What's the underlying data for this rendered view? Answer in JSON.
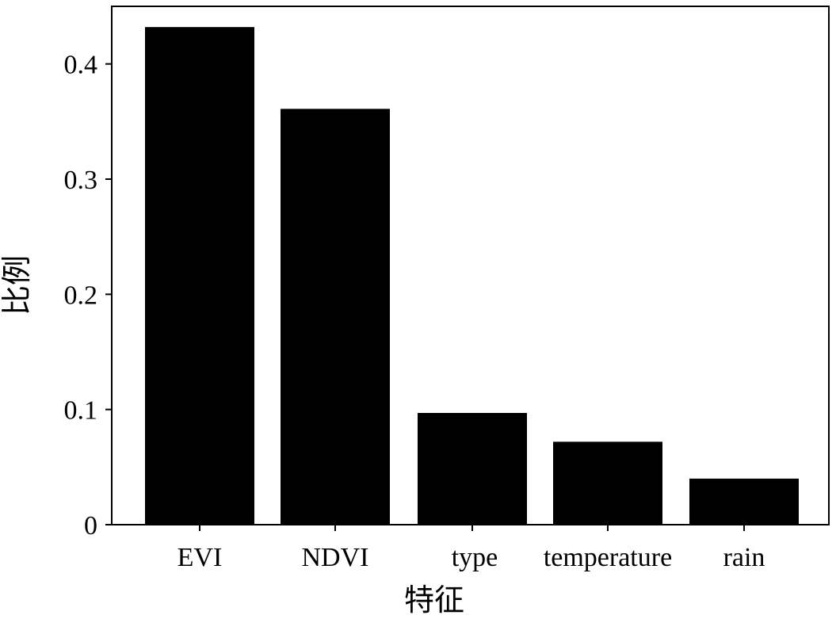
{
  "chart_data": {
    "type": "bar",
    "categories": [
      "EVI",
      "NDVI",
      "type",
      "temperature",
      "rain"
    ],
    "values": [
      0.432,
      0.361,
      0.097,
      0.072,
      0.04
    ],
    "xlabel": "特征",
    "ylabel": "比例",
    "ylim": [
      0,
      0.45
    ],
    "yticks": [
      {
        "value": 0,
        "label": "0"
      },
      {
        "value": 0.1,
        "label": "0.1"
      },
      {
        "value": 0.2,
        "label": "0.2"
      },
      {
        "value": 0.3,
        "label": "0.3"
      },
      {
        "value": 0.4,
        "label": "0.4"
      }
    ],
    "grid": false,
    "bar_color": "#000000"
  }
}
